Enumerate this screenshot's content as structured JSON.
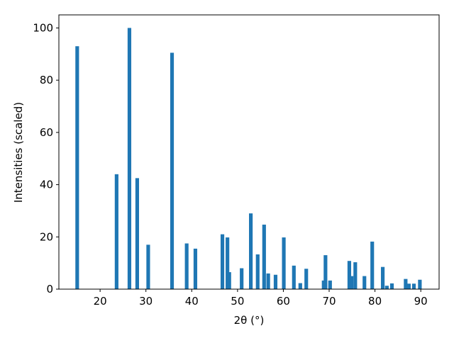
{
  "chart_data": {
    "type": "bar",
    "xlabel": "2θ (°)",
    "ylabel": "Intensities (scaled)",
    "color": "#1f77b4",
    "x": [
      15.0,
      23.6,
      26.4,
      28.1,
      30.5,
      35.7,
      38.9,
      40.8,
      46.7,
      47.8,
      48.2,
      50.9,
      52.9,
      54.4,
      55.8,
      56.7,
      58.3,
      60.1,
      62.3,
      63.7,
      65.0,
      68.8,
      69.2,
      70.2,
      74.4,
      74.9,
      75.7,
      77.7,
      79.4,
      81.7,
      82.6,
      83.7,
      86.7,
      87.4,
      88.5,
      89.8
    ],
    "values": [
      93,
      44,
      100,
      42.5,
      17,
      90.5,
      17.5,
      15.5,
      21,
      19.8,
      6.5,
      8,
      29,
      13.3,
      24.7,
      6,
      5.5,
      19.8,
      9,
      2.3,
      7.8,
      3.3,
      13,
      3.3,
      10.8,
      5,
      10.3,
      5,
      18.2,
      8.5,
      1.3,
      2.2,
      3.9,
      2.1,
      2.1,
      3.6
    ],
    "xlim": [
      11,
      94
    ],
    "ylim": [
      0,
      105
    ],
    "xticks": [
      20,
      30,
      40,
      50,
      60,
      70,
      80,
      90
    ],
    "yticks": [
      0,
      20,
      40,
      60,
      80,
      100
    ]
  }
}
